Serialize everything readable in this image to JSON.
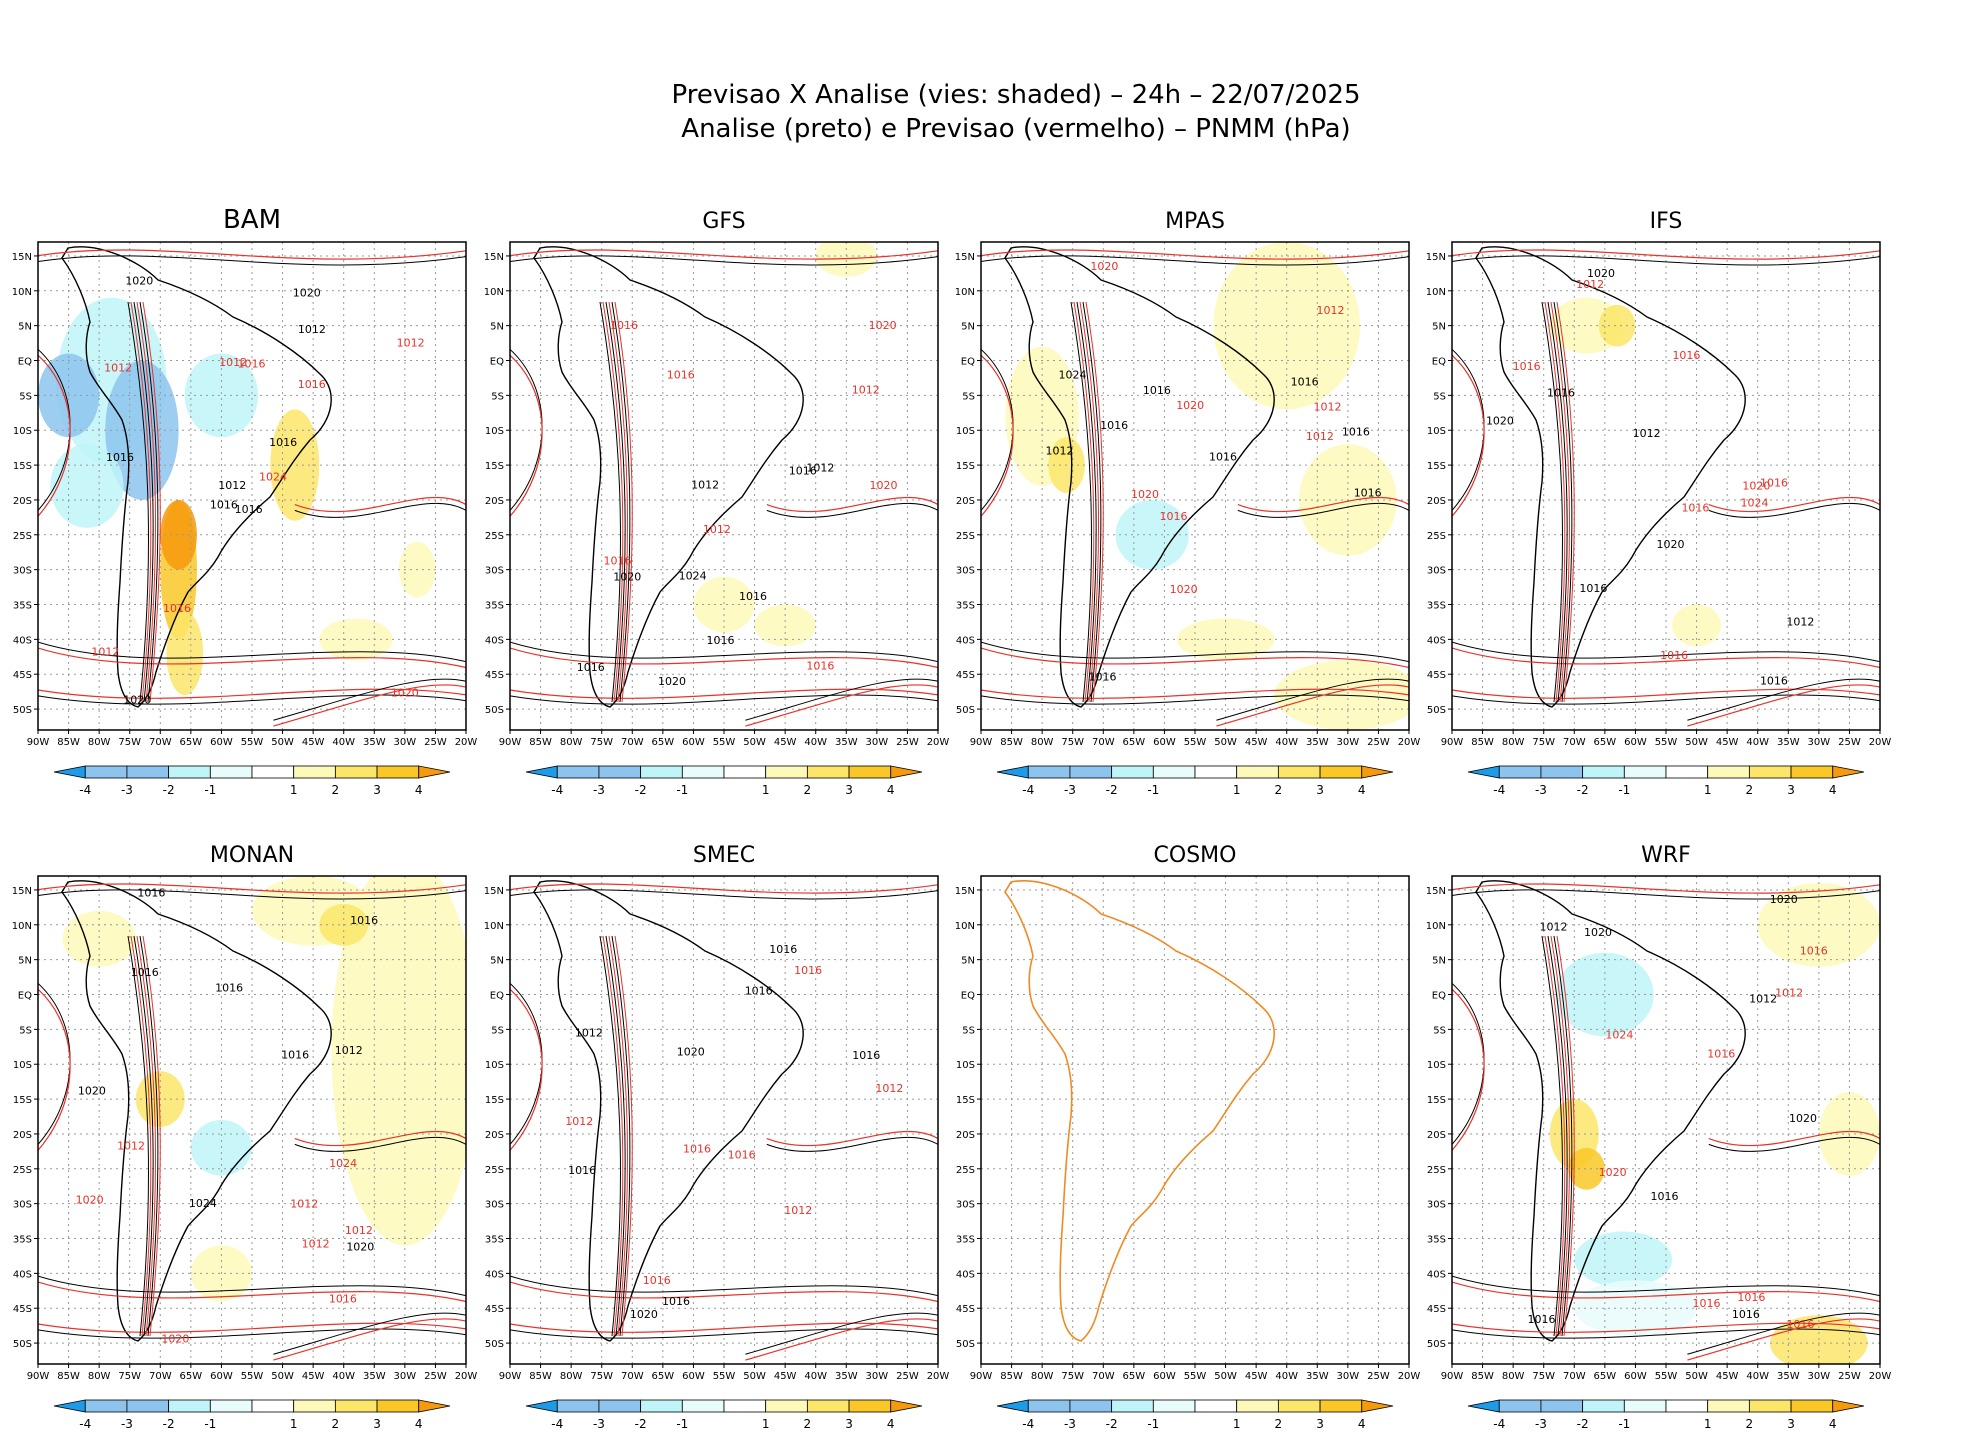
{
  "title_line1": "Previsao X Analise (vies: shaded) – 24h – 22/07/2025",
  "title_line2": "Analise (preto) e Previsao (vermelho) – PNMM (hPa)",
  "colors": {
    "analysis_contour": "#000000",
    "forecast_contour": "#e8322a",
    "coast_cosmo": "#f08a24",
    "grid": "#9a9a9a",
    "bias": {
      "-4": "#1e9be8",
      "-3": "#8cc4ee",
      "-2": "#bff4f8",
      "-1": "#e9fcfc",
      "1": "#fdf9b8",
      "2": "#fbe66a",
      "3": "#f9c828",
      "4": "#f49a0c"
    }
  },
  "chart_data": {
    "type": "heatmap",
    "variable": "PNMM (hPa)",
    "lead_time": "24h",
    "date": "22/07/2025",
    "lon_ticks": [
      "90W",
      "85W",
      "80W",
      "75W",
      "70W",
      "65W",
      "60W",
      "55W",
      "50W",
      "45W",
      "40W",
      "35W",
      "30W",
      "25W",
      "20W"
    ],
    "lat_ticks": [
      "15N",
      "10N",
      "5N",
      "EQ",
      "5S",
      "10S",
      "15S",
      "20S",
      "25S",
      "30S",
      "35S",
      "40S",
      "45S",
      "50S"
    ],
    "lon_range": [
      -90,
      -20
    ],
    "lat_range": [
      -53,
      17
    ],
    "colorbar": {
      "labels": [
        "-4",
        "-3",
        "-2",
        "-1",
        "1",
        "2",
        "3",
        "4"
      ]
    },
    "panels": [
      {
        "name": "BAM",
        "contour_labels": [
          "1016",
          "1012",
          "1012",
          "1012",
          "1016",
          "1016",
          "1020",
          "1016",
          "1012",
          "1024",
          "1020",
          "1020",
          "1016",
          "1012",
          "1016",
          "1016",
          "1020",
          "1012"
        ]
      },
      {
        "name": "GFS",
        "contour_labels": [
          "1016",
          "1016",
          "1012",
          "1012",
          "1016",
          "1016",
          "1012",
          "1016",
          "1024",
          "1020",
          "1020",
          "1016",
          "1020",
          "1012",
          "1016",
          "1020",
          "1016"
        ]
      },
      {
        "name": "MPAS",
        "contour_labels": [
          "1016",
          "1016",
          "1012",
          "1012",
          "1016",
          "1020",
          "1016",
          "1012",
          "1024",
          "1020",
          "1016",
          "1020",
          "1016",
          "1012",
          "1016",
          "1020",
          "1016"
        ]
      },
      {
        "name": "IFS",
        "contour_labels": [
          "1016",
          "1016",
          "1012",
          "1012",
          "1016",
          "1016",
          "1020",
          "1016",
          "1012",
          "1024",
          "1020",
          "1020",
          "1016",
          "1016",
          "1020",
          "1016"
        ]
      },
      {
        "name": "MONAN",
        "contour_labels": [
          "1016",
          "1016",
          "1012",
          "1012",
          "1016",
          "1012",
          "1020",
          "1020",
          "1016",
          "1012",
          "1024",
          "1020",
          "1020",
          "1024",
          "1016",
          "1012",
          "1016"
        ]
      },
      {
        "name": "SMEC",
        "contour_labels": [
          "1016",
          "1016",
          "1012",
          "1012",
          "1016",
          "1016",
          "1016",
          "1012",
          "1016",
          "1016",
          "1020",
          "1016",
          "1020",
          "1012",
          "1016"
        ]
      },
      {
        "name": "COSMO",
        "contour_labels": []
      },
      {
        "name": "WRF",
        "contour_labels": [
          "1016",
          "1016",
          "1012",
          "1016",
          "1020",
          "1016",
          "1012",
          "1024",
          "1020",
          "1020",
          "1016",
          "1012",
          "1016",
          "1016",
          "1020",
          "1016"
        ]
      }
    ]
  }
}
